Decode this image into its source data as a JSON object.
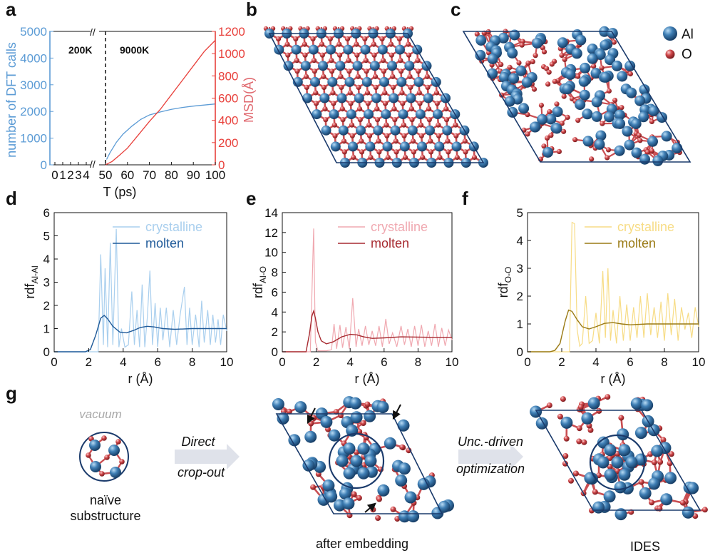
{
  "panels": {
    "a": "a",
    "b": "b",
    "c": "c",
    "d": "d",
    "e": "e",
    "f": "f",
    "g": "g"
  },
  "legend_atoms": {
    "al": "Al",
    "o": "O",
    "al_color": "#3f7fb5",
    "o_color": "#d0474a"
  },
  "colors": {
    "blue": "#5b9bd5",
    "red": "#e8403b",
    "navy": "#1a3a6b",
    "al": "#3f7fb5",
    "o": "#d0474a",
    "light_blue": "#a9cfee",
    "dark_blue": "#1f5a99",
    "light_red": "#f0a8b0",
    "dark_red": "#a72a30",
    "light_yellow": "#f7dc85",
    "dark_yellow": "#9a7a14"
  },
  "chart_data": [
    {
      "panel": "a",
      "type": "line",
      "xlabel": "T (ps)",
      "ylabel": "number of DFT calls",
      "ylabel_right": "MSD(Å)",
      "ylim": [
        0,
        5000
      ],
      "ylim_right": [
        0,
        1200
      ],
      "x_ticks_left": [
        "0",
        "1",
        "2",
        "3",
        "4"
      ],
      "x_ticks_right": [
        "50",
        "60",
        "70",
        "80",
        "90",
        "100"
      ],
      "y_ticks": [
        "0",
        "1000",
        "2000",
        "3000",
        "4000",
        "5000"
      ],
      "y_ticks_right": [
        "0",
        "200",
        "400",
        "600",
        "800",
        "1000",
        "1200"
      ],
      "axis_break": "//",
      "annotations": [
        "200K",
        "9000K"
      ],
      "series": [
        {
          "color": "blue",
          "axis": "left",
          "x": [
            50.5,
            52,
            55,
            58,
            62,
            66,
            70,
            75,
            80,
            85,
            90,
            95,
            100
          ],
          "y": [
            200,
            450,
            850,
            1150,
            1450,
            1700,
            1870,
            1980,
            2080,
            2150,
            2200,
            2240,
            2280
          ]
        },
        {
          "color": "red",
          "axis": "right",
          "x": [
            50,
            53,
            56,
            60,
            65,
            70,
            75,
            80,
            85,
            90,
            95,
            100
          ],
          "y": [
            0,
            30,
            80,
            150,
            270,
            390,
            500,
            630,
            760,
            890,
            1020,
            1120
          ]
        }
      ]
    },
    {
      "panel": "d",
      "type": "line",
      "xlabel": "r (Å)",
      "ylabel": "rdf",
      "ylabel_sub": "Al-Al",
      "xlim": [
        0,
        10
      ],
      "ylim": [
        0,
        6
      ],
      "x_ticks": [
        "0",
        "2",
        "4",
        "6",
        "8",
        "10"
      ],
      "y_ticks": [
        "0",
        "1",
        "2",
        "3",
        "4",
        "5",
        "6"
      ],
      "series": [
        {
          "name": "crystalline",
          "color": "light_blue",
          "x": [
            0,
            2.55,
            2.7,
            2.85,
            2.95,
            3.1,
            3.25,
            3.4,
            3.6,
            3.75,
            3.9,
            4.1,
            4.3,
            4.5,
            4.65,
            4.8,
            4.95,
            5.1,
            5.25,
            5.4,
            5.55,
            5.7,
            5.85,
            6.0,
            6.15,
            6.3,
            6.5,
            6.7,
            6.9,
            7.1,
            7.3,
            7.55,
            7.7,
            7.85,
            8.0,
            8.2,
            8.4,
            8.55,
            8.7,
            8.9,
            9.05,
            9.2,
            9.35,
            9.5,
            9.65,
            9.8,
            10
          ],
          "y": [
            0,
            0,
            4.2,
            0.3,
            3.6,
            0.2,
            4.7,
            0.3,
            5.3,
            0.2,
            1.0,
            0.2,
            0.3,
            2.6,
            0.3,
            1.8,
            0.2,
            2.9,
            0.2,
            1.5,
            3.5,
            0.3,
            2.1,
            0.2,
            1.9,
            0.5,
            1.9,
            0.2,
            1.8,
            0.3,
            1.6,
            2.8,
            0.3,
            1.9,
            0.3,
            1.6,
            0.2,
            2.2,
            0.4,
            1.8,
            0.3,
            1.6,
            0.4,
            1.4,
            0.3,
            1.6,
            0.9
          ]
        },
        {
          "name": "molten",
          "color": "dark_blue",
          "x": [
            0,
            1.8,
            2.1,
            2.4,
            2.7,
            2.9,
            3.1,
            3.4,
            3.8,
            4.2,
            4.6,
            5.0,
            5.4,
            5.8,
            6.3,
            7.0,
            8.0,
            9.0,
            10
          ],
          "y": [
            0,
            0,
            0.1,
            0.7,
            1.45,
            1.57,
            1.42,
            1.1,
            0.85,
            0.82,
            0.92,
            1.05,
            1.1,
            1.07,
            1.0,
            0.97,
            1.0,
            1.0,
            1.0
          ]
        }
      ]
    },
    {
      "panel": "e",
      "type": "line",
      "xlabel": "r (Å)",
      "ylabel": "rdf",
      "ylabel_sub": "Al-O",
      "xlim": [
        0,
        10
      ],
      "ylim": [
        0,
        14
      ],
      "x_ticks": [
        "0",
        "2",
        "4",
        "6",
        "8",
        "10"
      ],
      "y_ticks": [
        "0",
        "2",
        "4",
        "6",
        "8",
        "10",
        "12",
        "14"
      ],
      "series": [
        {
          "name": "crystalline",
          "color": "light_red",
          "x": [
            0,
            1.65,
            1.75,
            1.85,
            1.95,
            2.1,
            2.3,
            2.6,
            2.9,
            3.05,
            3.2,
            3.4,
            3.55,
            3.75,
            3.95,
            4.15,
            4.35,
            4.5,
            4.7,
            4.9,
            5.1,
            5.3,
            5.5,
            5.7,
            5.9,
            6.1,
            6.3,
            6.5,
            6.75,
            7.0,
            7.2,
            7.4,
            7.6,
            7.8,
            8.0,
            8.2,
            8.4,
            8.6,
            8.8,
            9.0,
            9.2,
            9.4,
            9.6,
            9.8,
            10
          ],
          "y": [
            0,
            0,
            6.0,
            12.4,
            1.0,
            0.1,
            0.1,
            0.1,
            0.2,
            2.8,
            0.3,
            2.7,
            0.4,
            2.5,
            0.3,
            5.4,
            0.5,
            2.3,
            0.6,
            2.6,
            0.7,
            2.1,
            0.6,
            2.6,
            0.5,
            3.3,
            0.8,
            1.9,
            0.5,
            2.6,
            0.7,
            2.3,
            0.5,
            2.6,
            0.6,
            2.7,
            0.5,
            2.1,
            0.6,
            2.8,
            0.5,
            2.4,
            0.6,
            2.2,
            1.2
          ]
        },
        {
          "name": "molten",
          "color": "dark_red",
          "x": [
            0,
            1.4,
            1.6,
            1.75,
            1.85,
            1.95,
            2.1,
            2.3,
            2.6,
            3.0,
            3.5,
            4.0,
            4.4,
            4.8,
            5.3,
            6.0,
            7.0,
            8.0,
            9.0,
            10
          ],
          "y": [
            0,
            0,
            1.8,
            3.6,
            4.1,
            3.4,
            2.0,
            1.1,
            0.8,
            1.0,
            1.5,
            1.75,
            1.7,
            1.5,
            1.35,
            1.4,
            1.5,
            1.48,
            1.45,
            1.45
          ]
        }
      ]
    },
    {
      "panel": "f",
      "type": "line",
      "xlabel": "r (Å)",
      "ylabel": "rdf",
      "ylabel_sub": "O-O",
      "xlim": [
        0,
        10
      ],
      "ylim": [
        0,
        5
      ],
      "x_ticks": [
        "0",
        "2",
        "4",
        "6",
        "8",
        "10"
      ],
      "y_ticks": [
        "0",
        "1",
        "2",
        "3",
        "4",
        "5"
      ],
      "series": [
        {
          "name": "crystalline",
          "color": "light_yellow",
          "x": [
            0,
            2.45,
            2.6,
            2.75,
            2.9,
            3.05,
            3.2,
            3.4,
            3.6,
            3.8,
            4.0,
            4.2,
            4.4,
            4.55,
            4.7,
            4.85,
            5.0,
            5.2,
            5.4,
            5.6,
            5.8,
            6.0,
            6.2,
            6.4,
            6.6,
            6.8,
            7.0,
            7.2,
            7.4,
            7.6,
            7.8,
            8.0,
            8.2,
            8.4,
            8.6,
            8.8,
            9.0,
            9.2,
            9.4,
            9.6,
            9.8,
            10
          ],
          "y": [
            0,
            0,
            4.65,
            4.6,
            0.8,
            0.2,
            0.3,
            2.0,
            0.3,
            0.4,
            1.4,
            0.3,
            2.9,
            0.5,
            3.0,
            0.4,
            1.5,
            0.3,
            2.0,
            0.4,
            1.7,
            0.4,
            1.6,
            0.5,
            2.0,
            0.5,
            2.1,
            0.6,
            1.6,
            0.5,
            1.8,
            0.4,
            2.1,
            0.6,
            1.9,
            0.4,
            1.6,
            0.8,
            1.4,
            0.5,
            1.6,
            0.9
          ]
        },
        {
          "name": "molten",
          "color": "dark_yellow",
          "x": [
            0,
            1.3,
            1.6,
            1.9,
            2.2,
            2.4,
            2.6,
            2.9,
            3.2,
            3.6,
            4.0,
            4.5,
            5.0,
            5.5,
            6.0,
            7.0,
            8.0,
            9.0,
            10
          ],
          "y": [
            0,
            0,
            0.05,
            0.3,
            1.1,
            1.5,
            1.45,
            1.15,
            0.9,
            0.82,
            0.9,
            1.02,
            1.05,
            1.0,
            0.97,
            1.0,
            1.0,
            1.0,
            1.0
          ]
        }
      ]
    }
  ],
  "schematic": {
    "vacuum": "vacuum",
    "naive_line1": "naïve",
    "naive_line2": "substructure",
    "arrow1_line1": "Direct",
    "arrow1_line2": "crop-out",
    "after_embedding": "after embedding",
    "arrow2_line1": "Unc.-driven",
    "arrow2_line2": "optimization",
    "ides": "IDES"
  }
}
